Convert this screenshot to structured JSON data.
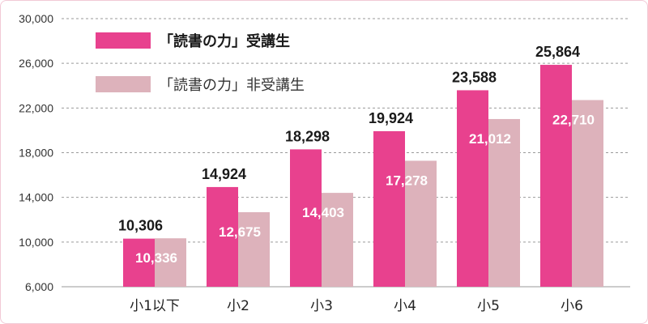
{
  "chart_data": {
    "type": "bar",
    "categories": [
      "小1以下",
      "小2",
      "小3",
      "小4",
      "小5",
      "小6"
    ],
    "ylim": [
      6000,
      30000
    ],
    "y_ticks": [
      "6,000",
      "10,000",
      "14,000",
      "18,000",
      "22,000",
      "26,000",
      "30,000"
    ],
    "y_tick_values": [
      6000,
      10000,
      14000,
      18000,
      22000,
      26000,
      30000
    ],
    "grid": true,
    "legend_position": "top-left",
    "series": [
      {
        "name": "「読書の力」受講生",
        "color": "#e8418e",
        "values": [
          10306,
          14924,
          18298,
          19924,
          23588,
          25864
        ],
        "labels": [
          "10,306",
          "14,924",
          "18,298",
          "19,924",
          "23,588",
          "25,864"
        ]
      },
      {
        "name": "「読書の力」非受講生",
        "color": "#ddb2bb",
        "values": [
          10336,
          12675,
          14403,
          17278,
          21012,
          22710
        ],
        "labels": [
          "10,336",
          "12,675",
          "14,403",
          "17,278",
          "21,012",
          "22,710"
        ]
      }
    ]
  }
}
